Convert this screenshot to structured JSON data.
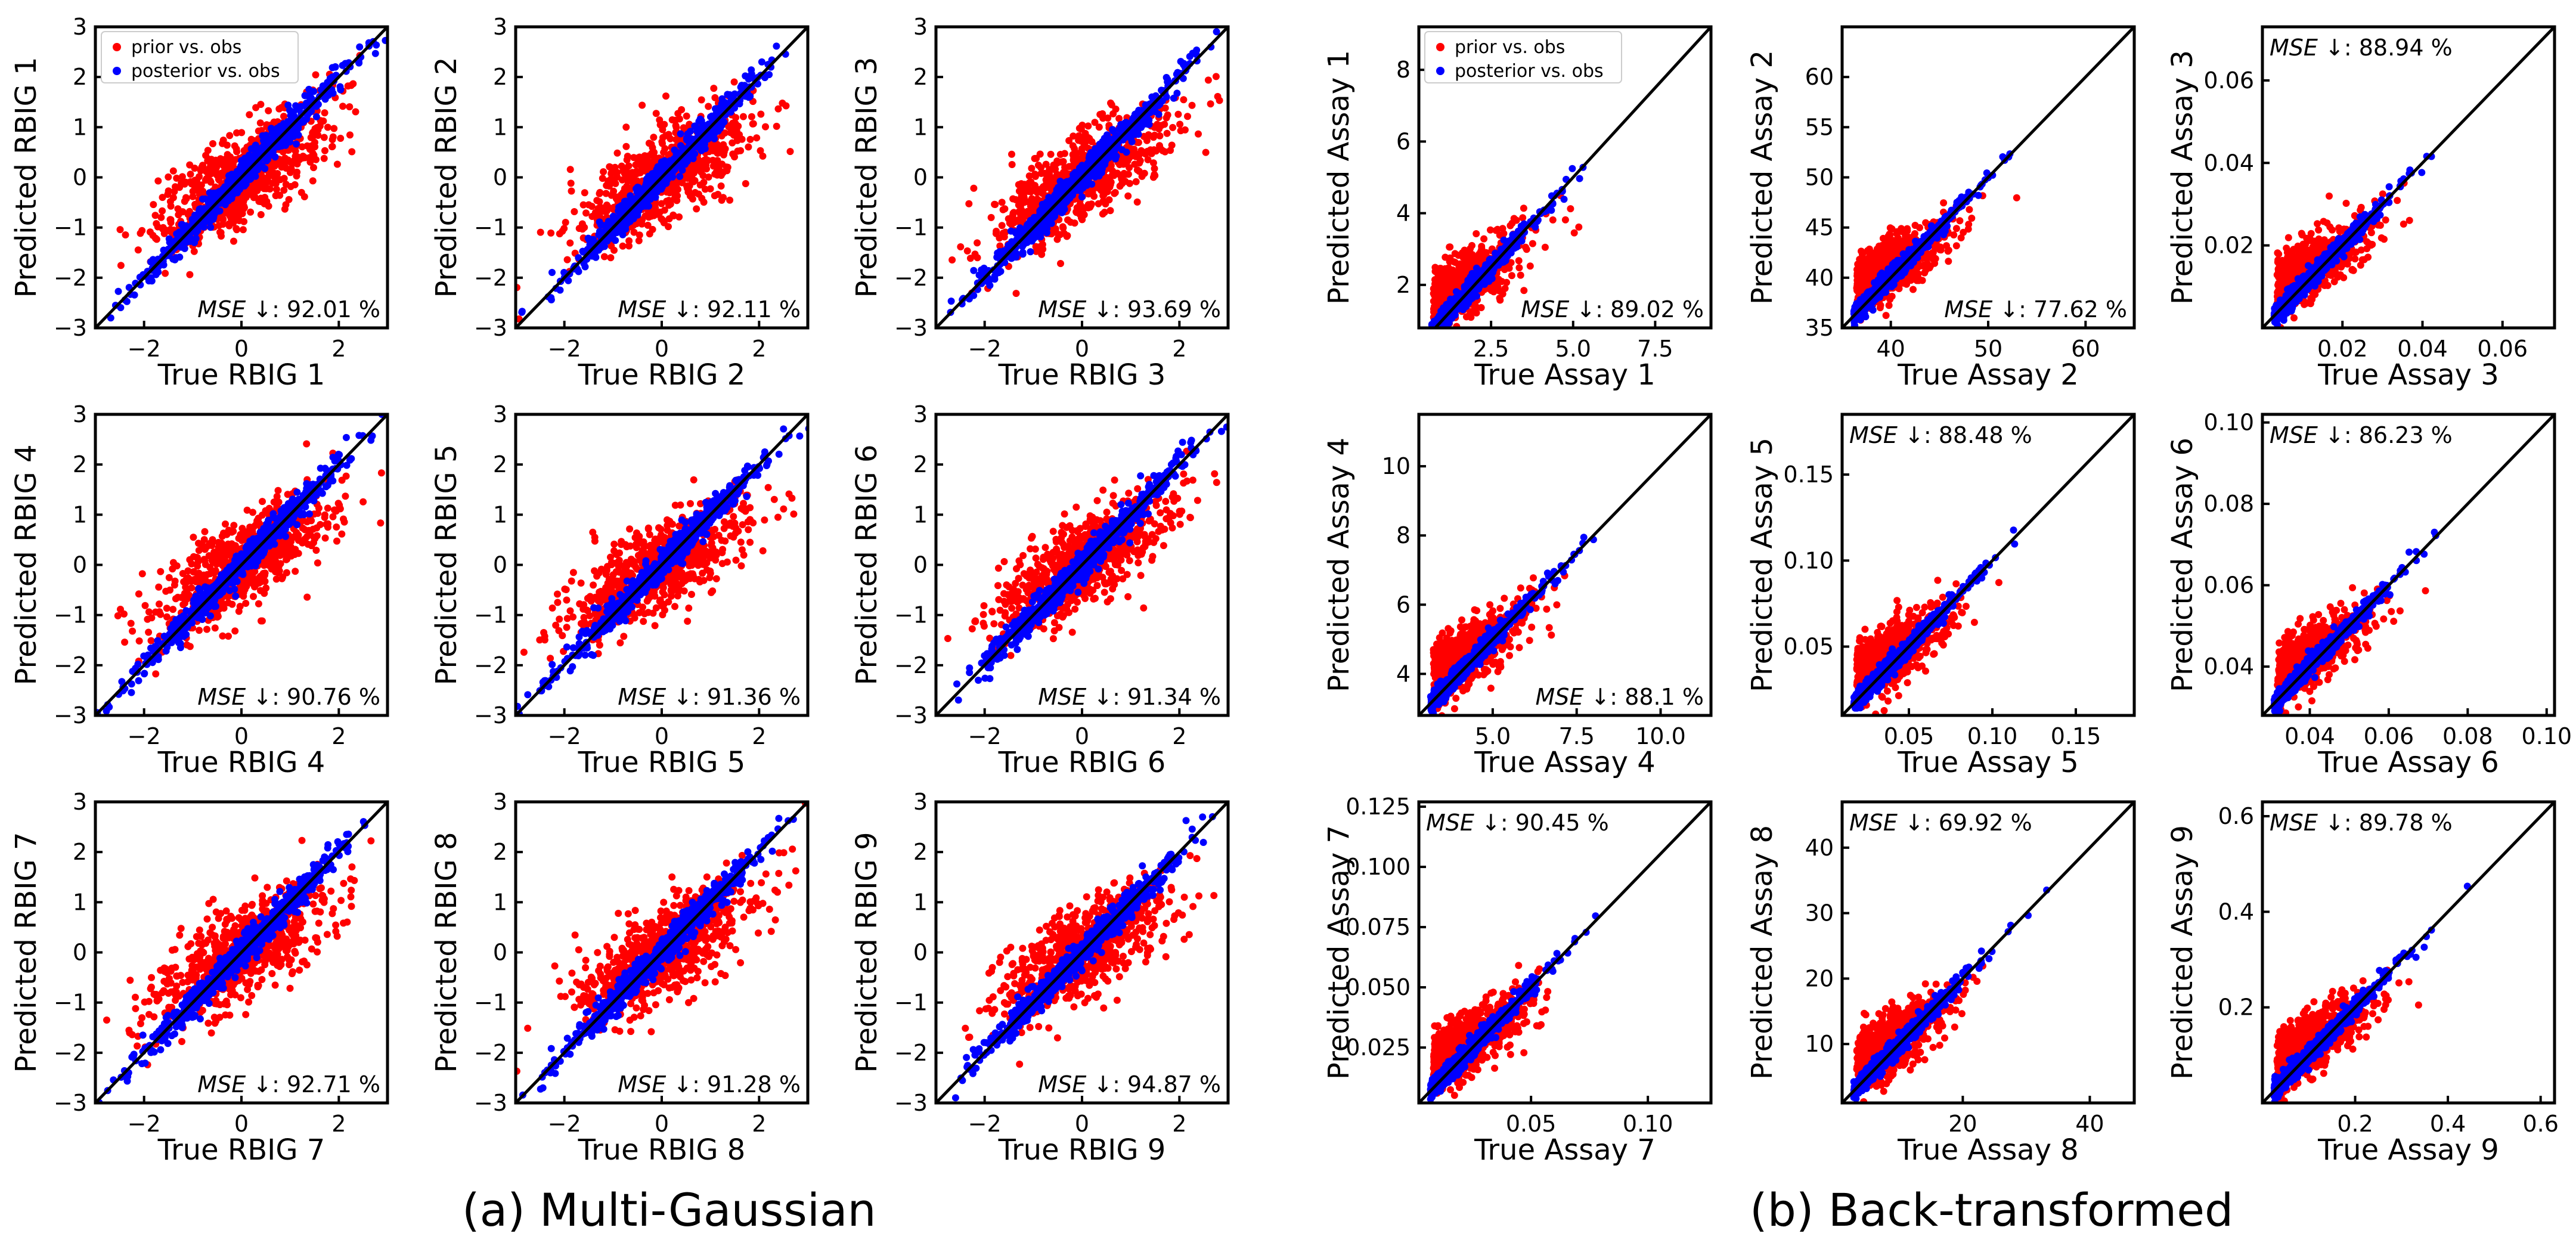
{
  "legend": {
    "prior_label": "prior vs. obs",
    "posterior_label": "posterior vs. obs"
  },
  "captions": {
    "a": "(a) Multi-Gaussian",
    "b": "(b) Back-transformed"
  },
  "colors": {
    "prior": "#ff0000",
    "posterior": "#0000ff",
    "line": "#000000"
  },
  "chart_data": [
    {
      "type": "scatter",
      "group": "a",
      "xlabel": "True RBIG 1",
      "ylabel": "Predicted RBIG 1",
      "xlim": [
        -3,
        3
      ],
      "ylim": [
        -3,
        3
      ],
      "xticks": [
        -2,
        0,
        2
      ],
      "yticks": [
        -3,
        -2,
        -1,
        0,
        1,
        2,
        3
      ],
      "mse_label": "MSE",
      "mse_value": "↓: 92.01 %",
      "mse_pos": "bottom-right",
      "legend": true,
      "prior_bias": "under_low",
      "identity_line": true
    },
    {
      "type": "scatter",
      "group": "a",
      "xlabel": "True RBIG 2",
      "ylabel": "Predicted RBIG 2",
      "xlim": [
        -3,
        3
      ],
      "ylim": [
        -3,
        3
      ],
      "xticks": [
        -2,
        0,
        2
      ],
      "yticks": [
        -3,
        -2,
        -1,
        0,
        1,
        2,
        3
      ],
      "mse_label": "MSE",
      "mse_value": "↓: 92.11 %",
      "mse_pos": "bottom-right",
      "legend": false,
      "identity_line": true
    },
    {
      "type": "scatter",
      "group": "a",
      "xlabel": "True RBIG 3",
      "ylabel": "Predicted RBIG 3",
      "xlim": [
        -3,
        3
      ],
      "ylim": [
        -3,
        3
      ],
      "xticks": [
        -2,
        0,
        2
      ],
      "yticks": [
        -3,
        -2,
        -1,
        0,
        1,
        2,
        3
      ],
      "mse_label": "MSE",
      "mse_value": "↓: 93.69 %",
      "mse_pos": "bottom-right",
      "legend": false,
      "identity_line": true
    },
    {
      "type": "scatter",
      "group": "b",
      "xlabel": "True Assay 1",
      "ylabel": "Predicted Assay 1",
      "xlim": [
        0.3,
        9.2
      ],
      "ylim": [
        0.8,
        9.2
      ],
      "xticks": [
        2.5,
        5.0,
        7.5
      ],
      "yticks": [
        2,
        4,
        6,
        8
      ],
      "mse_label": "MSE",
      "mse_value": "↓: 89.02 %",
      "mse_pos": "bottom-right",
      "legend": true,
      "identity_line": true
    },
    {
      "type": "scatter",
      "group": "b",
      "xlabel": "True Assay 2",
      "ylabel": "Predicted Assay 2",
      "xlim": [
        35,
        65
      ],
      "ylim": [
        35,
        65
      ],
      "xticks": [
        40,
        50,
        60
      ],
      "yticks": [
        35,
        40,
        45,
        50,
        55,
        60
      ],
      "mse_label": "MSE",
      "mse_value": "↓: 77.62 %",
      "mse_pos": "bottom-right",
      "legend": false,
      "identity_line": true
    },
    {
      "type": "scatter",
      "group": "b",
      "xlabel": "True Assay 3",
      "ylabel": "Predicted Assay 3",
      "xlim": [
        0.0,
        0.073
      ],
      "ylim": [
        0.0,
        0.073
      ],
      "xticks": [
        0.02,
        0.04,
        0.06
      ],
      "yticks": [
        0.02,
        0.04,
        0.06
      ],
      "mse_label": "MSE",
      "mse_value": "↓: 88.94 %",
      "mse_pos": "top-left",
      "legend": false,
      "identity_line": true
    },
    {
      "type": "scatter",
      "group": "a",
      "xlabel": "True RBIG 4",
      "ylabel": "Predicted RBIG 4",
      "xlim": [
        -3,
        3
      ],
      "ylim": [
        -3,
        3
      ],
      "xticks": [
        -2,
        0,
        2
      ],
      "yticks": [
        -3,
        -2,
        -1,
        0,
        1,
        2,
        3
      ],
      "mse_label": "MSE",
      "mse_value": "↓: 90.76 %",
      "mse_pos": "bottom-right",
      "legend": false,
      "identity_line": true
    },
    {
      "type": "scatter",
      "group": "a",
      "xlabel": "True RBIG 5",
      "ylabel": "Predicted RBIG 5",
      "xlim": [
        -3,
        3
      ],
      "ylim": [
        -3,
        3
      ],
      "xticks": [
        -2,
        0,
        2
      ],
      "yticks": [
        -3,
        -2,
        -1,
        0,
        1,
        2,
        3
      ],
      "mse_label": "MSE",
      "mse_value": "↓: 91.36 %",
      "mse_pos": "bottom-right",
      "legend": false,
      "identity_line": true
    },
    {
      "type": "scatter",
      "group": "a",
      "xlabel": "True RBIG 6",
      "ylabel": "Predicted RBIG 6",
      "xlim": [
        -3,
        3
      ],
      "ylim": [
        -3,
        3
      ],
      "xticks": [
        -2,
        0,
        2
      ],
      "yticks": [
        -3,
        -2,
        -1,
        0,
        1,
        2,
        3
      ],
      "mse_label": "MSE",
      "mse_value": "↓: 91.34 %",
      "mse_pos": "bottom-right",
      "legend": false,
      "identity_line": true
    },
    {
      "type": "scatter",
      "group": "b",
      "xlabel": "True Assay 4",
      "ylabel": "Predicted Assay 4",
      "xlim": [
        2.8,
        11.5
      ],
      "ylim": [
        2.8,
        11.5
      ],
      "xticks": [
        5.0,
        7.5,
        10.0
      ],
      "yticks": [
        4,
        6,
        8,
        10
      ],
      "mse_label": "MSE",
      "mse_value": "↓: 88.1 %",
      "mse_pos": "bottom-right",
      "legend": false,
      "identity_line": true
    },
    {
      "type": "scatter",
      "group": "b",
      "xlabel": "True Assay 5",
      "ylabel": "Predicted Assay 5",
      "xlim": [
        0.01,
        0.185
      ],
      "ylim": [
        0.01,
        0.185
      ],
      "xticks": [
        0.05,
        0.1,
        0.15
      ],
      "yticks": [
        0.05,
        0.1,
        0.15
      ],
      "mse_label": "MSE",
      "mse_value": "↓: 88.48 %",
      "mse_pos": "top-left",
      "legend": false,
      "identity_line": true
    },
    {
      "type": "scatter",
      "group": "b",
      "xlabel": "True Assay 6",
      "ylabel": "Predicted Assay 6",
      "xlim": [
        0.028,
        0.102
      ],
      "ylim": [
        0.028,
        0.102
      ],
      "xticks": [
        0.04,
        0.06,
        0.08,
        0.1
      ],
      "yticks": [
        0.04,
        0.06,
        0.08,
        0.1
      ],
      "mse_label": "MSE",
      "mse_value": "↓: 86.23 %",
      "mse_pos": "top-left",
      "legend": false,
      "identity_line": true
    },
    {
      "type": "scatter",
      "group": "a",
      "xlabel": "True RBIG 7",
      "ylabel": "Predicted RBIG 7",
      "xlim": [
        -3,
        3
      ],
      "ylim": [
        -3,
        3
      ],
      "xticks": [
        -2,
        0,
        2
      ],
      "yticks": [
        -3,
        -2,
        -1,
        0,
        1,
        2,
        3
      ],
      "mse_label": "MSE",
      "mse_value": "↓: 92.71 %",
      "mse_pos": "bottom-right",
      "legend": false,
      "identity_line": true
    },
    {
      "type": "scatter",
      "group": "a",
      "xlabel": "True RBIG 8",
      "ylabel": "Predicted RBIG 8",
      "xlim": [
        -3,
        3
      ],
      "ylim": [
        -3,
        3
      ],
      "xticks": [
        -2,
        0,
        2
      ],
      "yticks": [
        -3,
        -2,
        -1,
        0,
        1,
        2,
        3
      ],
      "mse_label": "MSE",
      "mse_value": "↓: 91.28 %",
      "mse_pos": "bottom-right",
      "legend": false,
      "identity_line": true
    },
    {
      "type": "scatter",
      "group": "a",
      "xlabel": "True RBIG 9",
      "ylabel": "Predicted RBIG 9",
      "xlim": [
        -3,
        3
      ],
      "ylim": [
        -3,
        3
      ],
      "xticks": [
        -2,
        0,
        2
      ],
      "yticks": [
        -3,
        -2,
        -1,
        0,
        1,
        2,
        3
      ],
      "mse_label": "MSE",
      "mse_value": "↓: 94.87 %",
      "mse_pos": "bottom-right",
      "legend": false,
      "identity_line": true
    },
    {
      "type": "scatter",
      "group": "b",
      "xlabel": "True Assay 7",
      "ylabel": "Predicted Assay 7",
      "xlim": [
        0.002,
        0.127
      ],
      "ylim": [
        0.002,
        0.127
      ],
      "xticks": [
        0.05,
        0.1
      ],
      "yticks": [
        0.025,
        0.05,
        0.075,
        0.1,
        0.125
      ],
      "mse_label": "MSE",
      "mse_value": "↓: 90.45 %",
      "mse_pos": "top-left",
      "legend": false,
      "identity_line": true
    },
    {
      "type": "scatter",
      "group": "b",
      "xlabel": "True Assay 8",
      "ylabel": "Predicted Assay 8",
      "xlim": [
        1,
        47
      ],
      "ylim": [
        1,
        47
      ],
      "xticks": [
        20,
        40
      ],
      "yticks": [
        10,
        20,
        30,
        40
      ],
      "mse_label": "MSE",
      "mse_value": "↓: 69.92 %",
      "mse_pos": "top-left",
      "legend": false,
      "identity_line": true
    },
    {
      "type": "scatter",
      "group": "b",
      "xlabel": "True Assay 9",
      "ylabel": "Predicted Assay 9",
      "xlim": [
        0.0,
        0.63
      ],
      "ylim": [
        0.0,
        0.63
      ],
      "xticks": [
        0.2,
        0.4,
        0.6
      ],
      "yticks": [
        0.2,
        0.4,
        0.6
      ],
      "mse_label": "MSE",
      "mse_value": "↓: 89.78 %",
      "mse_pos": "top-left",
      "legend": false,
      "identity_line": true
    }
  ]
}
